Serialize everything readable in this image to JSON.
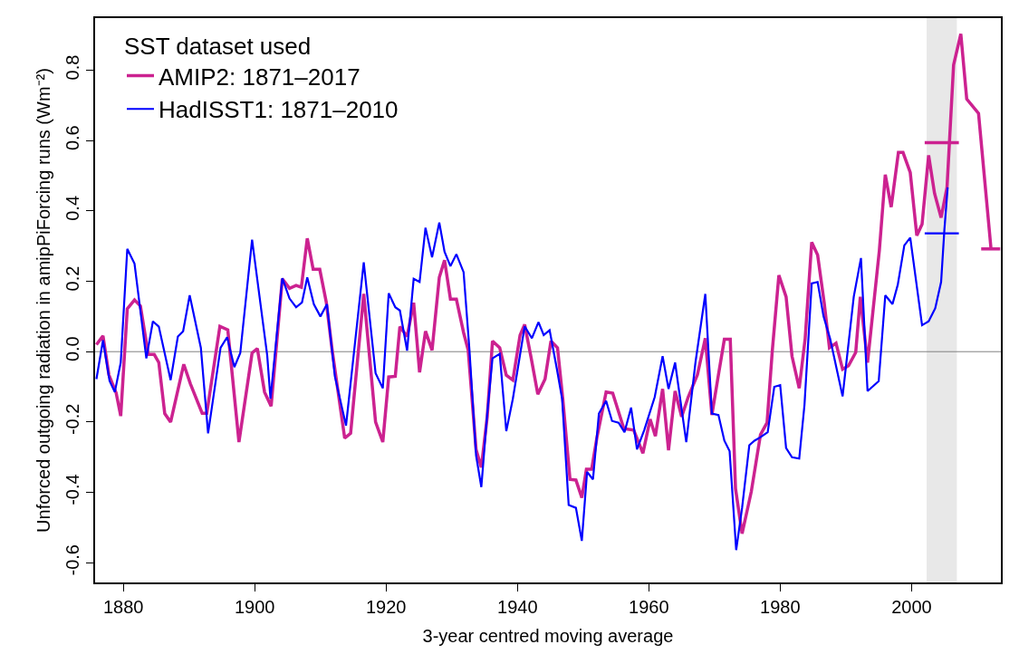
{
  "chart_data": {
    "type": "line",
    "xlabel": "3-year centred moving average",
    "ylabel": "Unforced outgoing radiation in amipPiForcing runs (Wm⁻²)",
    "legend_title": "SST dataset used",
    "legend": "top left",
    "grid": false,
    "xlim": [
      1875.7,
      2013.6
    ],
    "xticks": [
      1880,
      1900,
      1920,
      1940,
      1960,
      1980,
      2000
    ],
    "ylim": [
      -0.656,
      0.948
    ],
    "yticks": [
      -0.6,
      -0.4,
      -0.2,
      {
        "value": 0,
        "label": "0.0"
      },
      0.2,
      0.4,
      0.6,
      0.8
    ],
    "ref_lines": [
      {
        "axis": "y",
        "value": 0,
        "color": "#808080"
      }
    ],
    "bands": [
      {
        "axis": "x",
        "from": 2002.3,
        "to": 2006.9,
        "color": "#e8e8e8"
      }
    ],
    "series": [
      {
        "name": "AMIP2: 1871–2017",
        "color": "#cc2290",
        "x": [
          1875.9,
          1876.9,
          1877.8,
          1878.9,
          1879.6,
          1880.6,
          1881.7,
          1882.6,
          1883.8,
          1884.7,
          1885.4,
          1886.3,
          1887.2,
          1889.2,
          1890.2,
          1892.0,
          1892.7,
          1894.7,
          1895.9,
          1897.6,
          1899.6,
          1900.4,
          1901.5,
          1902.5,
          1904.2,
          1905.3,
          1906.3,
          1907.1,
          1908.0,
          1908.9,
          1909.9,
          1910.9,
          1911.8,
          1913.7,
          1914.6,
          1916.6,
          1918.4,
          1919.5,
          1920.4,
          1921.4,
          1922.1,
          1923.2,
          1924.2,
          1925.1,
          1926.0,
          1927.0,
          1928.1,
          1928.9,
          1929.8,
          1930.7,
          1931.8,
          1932.5,
          1933.7,
          1934.5,
          1935.4,
          1936.2,
          1937.3,
          1938.3,
          1939.3,
          1940.4,
          1941.1,
          1942.1,
          1943.1,
          1944.2,
          1945.1,
          1946.1,
          1946.9,
          1948.0,
          1948.9,
          1949.8,
          1950.5,
          1951.3,
          1952.1,
          1953.5,
          1954.5,
          1956.2,
          1957.7,
          1959.1,
          1960.2,
          1961.0,
          1962.1,
          1963.0,
          1964.0,
          1965.0,
          1966.0,
          1967.4,
          1968.6,
          1969.6,
          1970.6,
          1971.5,
          1972.4,
          1973.2,
          1974.2,
          1975.6,
          1977.0,
          1978.0,
          1978.8,
          1979.8,
          1980.9,
          1981.8,
          1982.9,
          1983.8,
          1984.8,
          1985.7,
          1986.7,
          1987.5,
          1988.5,
          1989.5,
          1990.4,
          1991.5,
          1992.2,
          1993.3,
          1995.1,
          1996.0,
          1996.9,
          1998.0,
          1998.7,
          1999.8,
          2000.8,
          2001.6,
          2002.6,
          2003.5,
          2004.5,
          2005.4,
          2006.4,
          2007.5,
          2008.4,
          2010.2,
          2012.1
        ],
        "values": [
          0.02,
          0.045,
          -0.066,
          -0.117,
          -0.183,
          0.122,
          0.147,
          0.13,
          -0.008,
          -0.008,
          -0.031,
          -0.176,
          -0.2,
          -0.036,
          -0.091,
          -0.175,
          -0.175,
          0.072,
          0.062,
          -0.257,
          -0.004,
          0.009,
          -0.115,
          -0.155,
          0.207,
          0.18,
          0.188,
          0.183,
          0.322,
          0.234,
          0.234,
          0.14,
          0.003,
          -0.246,
          -0.232,
          0.164,
          -0.2,
          -0.257,
          -0.072,
          -0.07,
          0.071,
          0.043,
          0.139,
          -0.059,
          0.058,
          0.004,
          0.211,
          0.26,
          0.149,
          0.149,
          0.054,
          0.004,
          -0.278,
          -0.329,
          -0.185,
          0.03,
          0.011,
          -0.067,
          -0.081,
          0.047,
          0.077,
          -0.019,
          -0.121,
          -0.078,
          0.03,
          0.011,
          -0.134,
          -0.363,
          -0.365,
          -0.415,
          -0.334,
          -0.334,
          -0.244,
          -0.115,
          -0.118,
          -0.219,
          -0.223,
          -0.289,
          -0.192,
          -0.24,
          -0.106,
          -0.28,
          -0.112,
          -0.185,
          -0.129,
          -0.066,
          0.038,
          -0.18,
          -0.066,
          0.035,
          0.035,
          -0.389,
          -0.517,
          -0.398,
          -0.236,
          -0.202,
          0.003,
          0.217,
          0.156,
          -0.013,
          -0.104,
          0.037,
          0.311,
          0.275,
          0.139,
          0.011,
          0.024,
          -0.05,
          -0.04,
          -0.002,
          0.156,
          -0.031,
          0.288,
          0.503,
          0.411,
          0.566,
          0.566,
          0.509,
          0.33,
          0.362,
          0.558,
          0.45,
          0.381,
          0.467,
          0.815,
          0.903,
          0.718,
          0.677,
          0.292
        ]
      },
      {
        "name": "HadISST1: 1871–2010",
        "color": "#0000ff",
        "x": [
          1875.9,
          1876.9,
          1877.9,
          1878.7,
          1879.6,
          1880.6,
          1881.7,
          1883.5,
          1884.5,
          1885.4,
          1887.2,
          1888.3,
          1889.1,
          1890.1,
          1891.8,
          1892.9,
          1894.8,
          1895.8,
          1896.9,
          1897.8,
          1899.6,
          1901.9,
          1902.4,
          1904.2,
          1905.3,
          1906.3,
          1907.2,
          1908.0,
          1909.0,
          1910.0,
          1911.0,
          1912.2,
          1913.9,
          1916.6,
          1918.4,
          1919.5,
          1920.4,
          1921.4,
          1922.1,
          1923.2,
          1924.2,
          1925.1,
          1926.0,
          1927.0,
          1928.1,
          1928.9,
          1929.8,
          1930.7,
          1931.8,
          1932.7,
          1933.7,
          1934.5,
          1935.4,
          1936.2,
          1937.3,
          1938.3,
          1939.3,
          1941.1,
          1942.2,
          1943.2,
          1944.0,
          1944.9,
          1946.0,
          1946.8,
          1947.8,
          1948.9,
          1949.8,
          1950.6,
          1951.5,
          1952.4,
          1953.5,
          1954.4,
          1955.4,
          1956.3,
          1957.3,
          1958.2,
          1959.3,
          1960.9,
          1962.1,
          1963.0,
          1964.0,
          1965.7,
          1967.1,
          1968.6,
          1969.6,
          1970.6,
          1971.5,
          1972.3,
          1973.3,
          1974.2,
          1975.3,
          1976.1,
          1977.0,
          1978.1,
          1979.1,
          1980.0,
          1980.9,
          1981.8,
          1982.9,
          1983.7,
          1984.8,
          1985.7,
          1986.6,
          1987.6,
          1989.5,
          1991.2,
          1992.3,
          1993.3,
          1995.0,
          1996.0,
          1997.1,
          1997.9,
          1998.9,
          1999.8,
          2001.6,
          2002.6,
          2003.6,
          2004.5,
          2005.0,
          2005.5
        ],
        "values": [
          -0.078,
          0.032,
          -0.083,
          -0.115,
          -0.031,
          0.292,
          0.25,
          -0.019,
          0.086,
          0.071,
          -0.081,
          0.043,
          0.058,
          0.16,
          0.011,
          -0.232,
          0.011,
          0.041,
          -0.044,
          -0.004,
          0.318,
          -0.01,
          -0.134,
          0.209,
          0.151,
          0.126,
          0.14,
          0.211,
          0.135,
          0.1,
          0.135,
          -0.07,
          -0.21,
          0.254,
          -0.061,
          -0.104,
          0.166,
          0.126,
          0.117,
          0.003,
          0.207,
          0.198,
          0.352,
          0.268,
          0.367,
          0.284,
          0.243,
          0.277,
          0.226,
          0.003,
          -0.295,
          -0.385,
          -0.176,
          -0.019,
          -0.006,
          -0.226,
          -0.134,
          0.072,
          0.038,
          0.084,
          0.047,
          0.061,
          -0.049,
          -0.134,
          -0.436,
          -0.444,
          -0.538,
          -0.342,
          -0.363,
          -0.176,
          -0.14,
          -0.197,
          -0.202,
          -0.229,
          -0.159,
          -0.278,
          -0.223,
          -0.129,
          -0.013,
          -0.106,
          -0.031,
          -0.257,
          -0.031,
          0.164,
          -0.176,
          -0.18,
          -0.253,
          -0.283,
          -0.564,
          -0.444,
          -0.266,
          -0.253,
          -0.243,
          -0.229,
          -0.1,
          -0.095,
          -0.274,
          -0.3,
          -0.304,
          -0.151,
          0.194,
          0.198,
          0.1,
          0.037,
          -0.127,
          0.156,
          0.266,
          -0.112,
          -0.084,
          0.16,
          0.135,
          0.19,
          0.302,
          0.324,
          0.075,
          0.086,
          0.123,
          0.198,
          0.347,
          0.467
        ]
      },
      {
        "color": "#cc2290",
        "x": [
          2002.0,
          2007.2
        ],
        "values": [
          0.594,
          0.594
        ]
      },
      {
        "color": "#0000ff",
        "x": [
          2002.0,
          2007.2
        ],
        "values": [
          0.336,
          0.336
        ]
      },
      {
        "color": "#cc2290",
        "x": [
          2010.6,
          2013.5
        ],
        "values": [
          0.292,
          0.292
        ]
      }
    ]
  }
}
